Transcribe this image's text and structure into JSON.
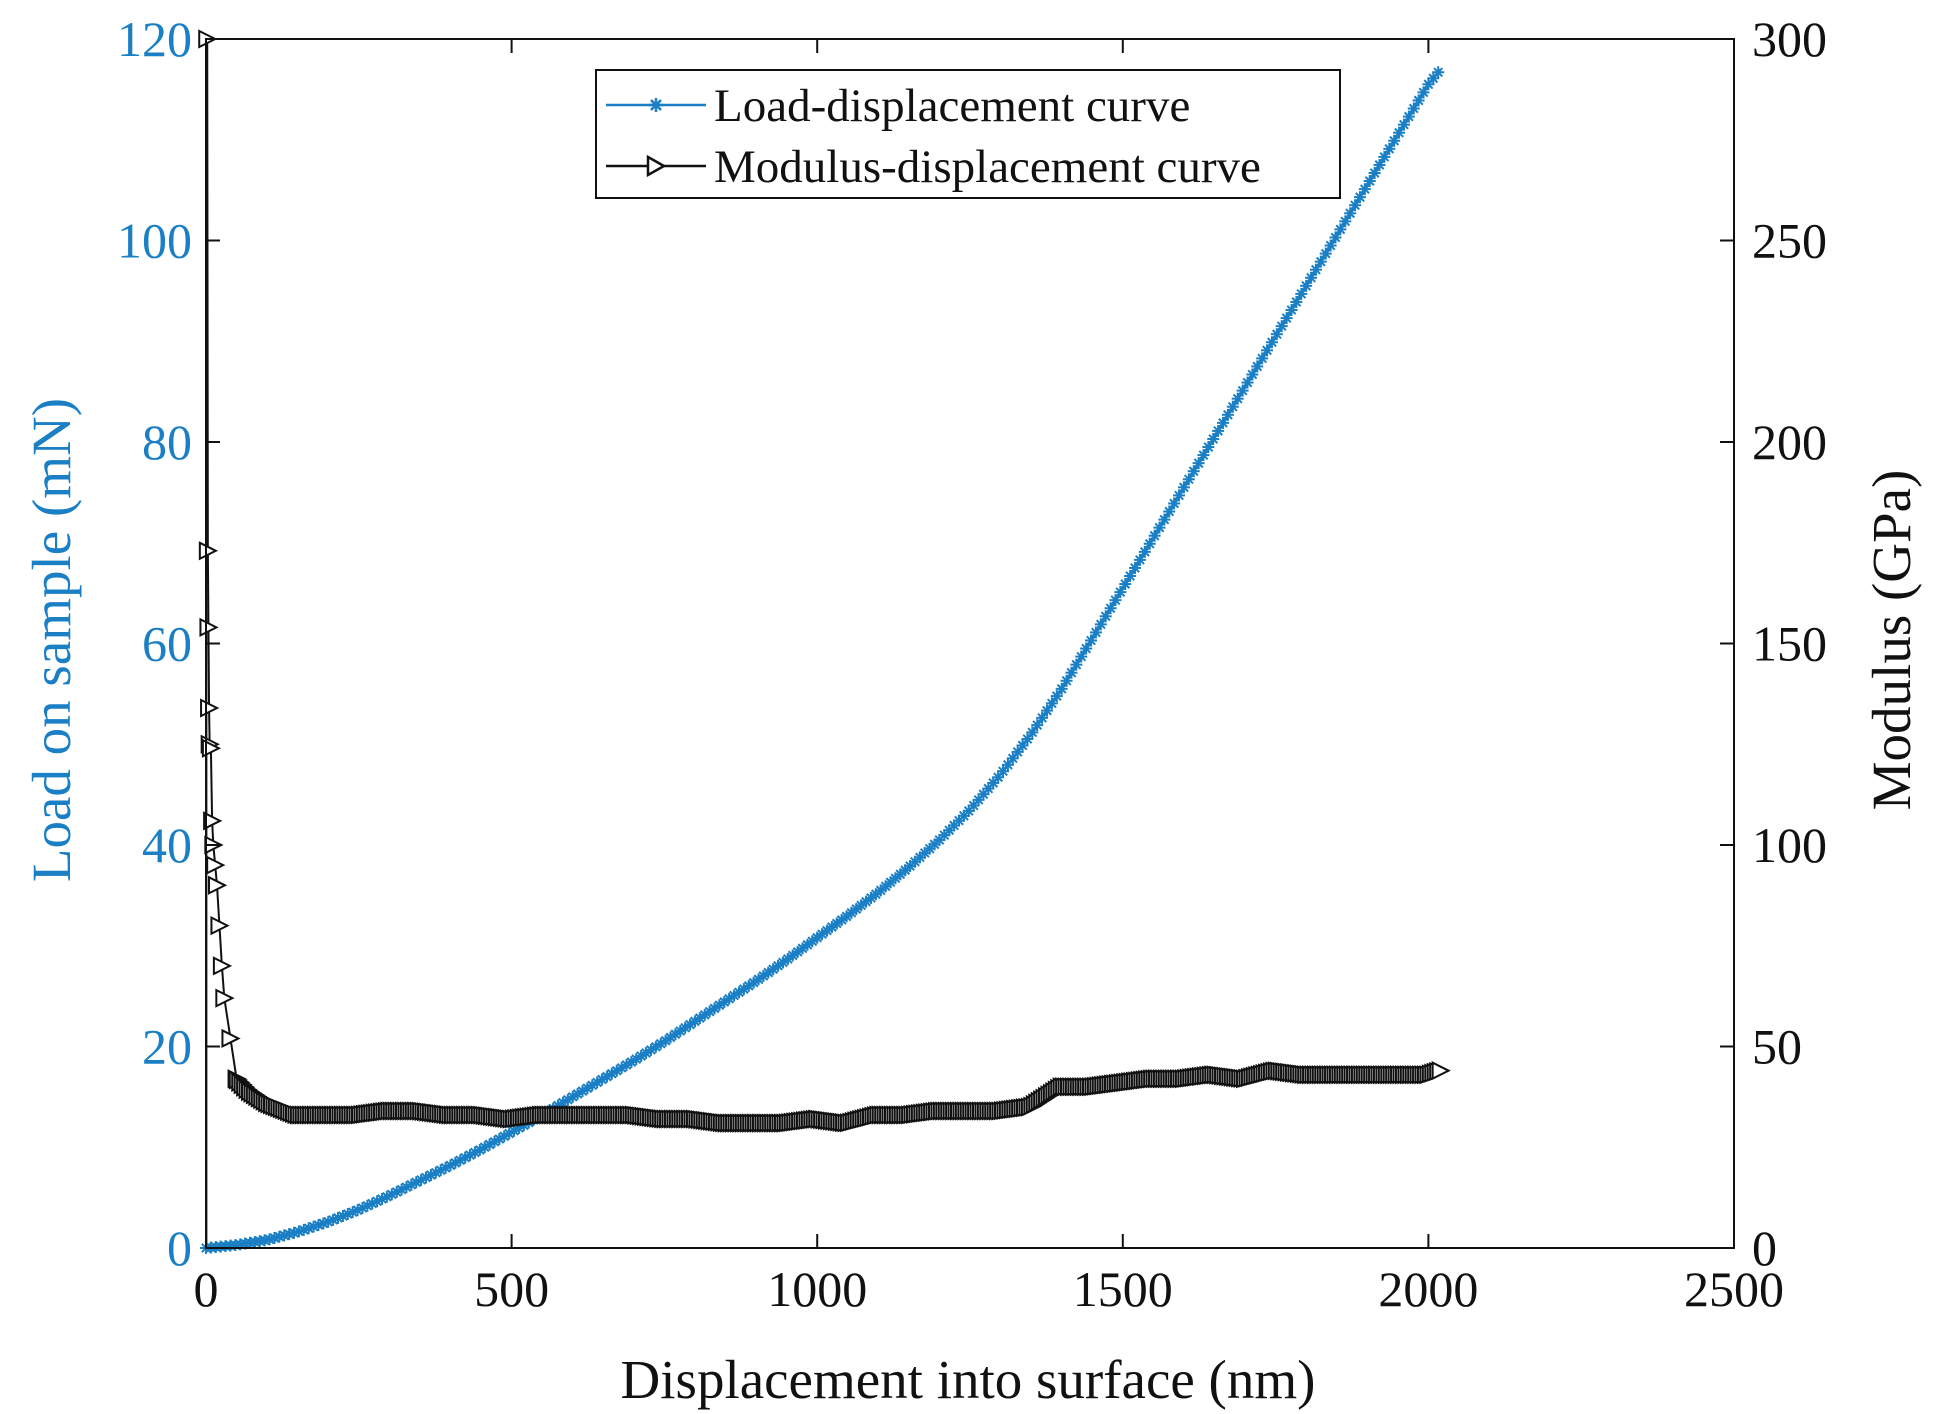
{
  "chart_data": {
    "type": "line",
    "xlabel": "Displacement into surface (nm)",
    "ylabel_left": "Load on sample (mN)",
    "ylabel_right": "Modulus (GPa)",
    "xlim": [
      0,
      2500
    ],
    "ylim_left": [
      0,
      120
    ],
    "ylim_right": [
      0,
      300
    ],
    "x_ticks": [
      0,
      500,
      1000,
      1500,
      2000,
      2500
    ],
    "y_left_ticks": [
      0,
      20,
      40,
      60,
      80,
      100,
      120
    ],
    "y_right_ticks": [
      0,
      50,
      100,
      150,
      200,
      250,
      300
    ],
    "grid": false,
    "legend_position": "top-center",
    "colors": {
      "load": "#1a7fc4",
      "modulus": "#111111",
      "axis": "#111111"
    },
    "series": [
      {
        "name": "Load-displacement curve",
        "axis": "left",
        "marker": "asterisk",
        "x": [
          0,
          50,
          100,
          150,
          200,
          250,
          300,
          350,
          400,
          450,
          500,
          550,
          600,
          650,
          700,
          750,
          800,
          850,
          900,
          950,
          1000,
          1050,
          1100,
          1150,
          1200,
          1250,
          1300,
          1350,
          1400,
          1450,
          1500,
          1550,
          1600,
          1650,
          1700,
          1750,
          1800,
          1850,
          1900,
          1950,
          2000,
          2020
        ],
        "y": [
          0,
          0.3,
          0.8,
          1.6,
          2.6,
          3.8,
          5.2,
          6.7,
          8.2,
          9.8,
          11.5,
          13.2,
          15.0,
          16.8,
          18.6,
          20.5,
          22.5,
          24.5,
          26.5,
          28.6,
          30.8,
          33.0,
          35.3,
          37.8,
          40.5,
          43.5,
          47.0,
          51.0,
          55.5,
          60.5,
          65.5,
          70.5,
          75.5,
          80.5,
          85.5,
          90.5,
          95.5,
          100.5,
          105.5,
          110.5,
          115.5,
          117.0
        ]
      },
      {
        "name": "Modulus-displacement curve",
        "axis": "right",
        "marker": "triangle-right",
        "x": [
          2,
          3,
          4,
          5,
          6,
          8,
          10,
          12,
          15,
          18,
          22,
          26,
          30,
          40,
          50,
          70,
          100,
          150,
          200,
          250,
          300,
          350,
          400,
          450,
          500,
          550,
          600,
          650,
          700,
          750,
          800,
          850,
          900,
          950,
          1000,
          1050,
          1100,
          1150,
          1200,
          1250,
          1300,
          1350,
          1400,
          1450,
          1500,
          1550,
          1600,
          1650,
          1700,
          1750,
          1800,
          1850,
          1900,
          1950,
          2000,
          2020
        ],
        "y": [
          300,
          173,
          154,
          134,
          125,
          124,
          106,
          100,
          95,
          90,
          80,
          70,
          62,
          52,
          42,
          39,
          36,
          33,
          33,
          33,
          34,
          34,
          33,
          33,
          32,
          33,
          33,
          33,
          33,
          32,
          32,
          31,
          31,
          31,
          32,
          31,
          33,
          33,
          34,
          34,
          34,
          35,
          40,
          40,
          41,
          42,
          42,
          43,
          42,
          44,
          43,
          43,
          43,
          43,
          43,
          44
        ]
      }
    ]
  }
}
